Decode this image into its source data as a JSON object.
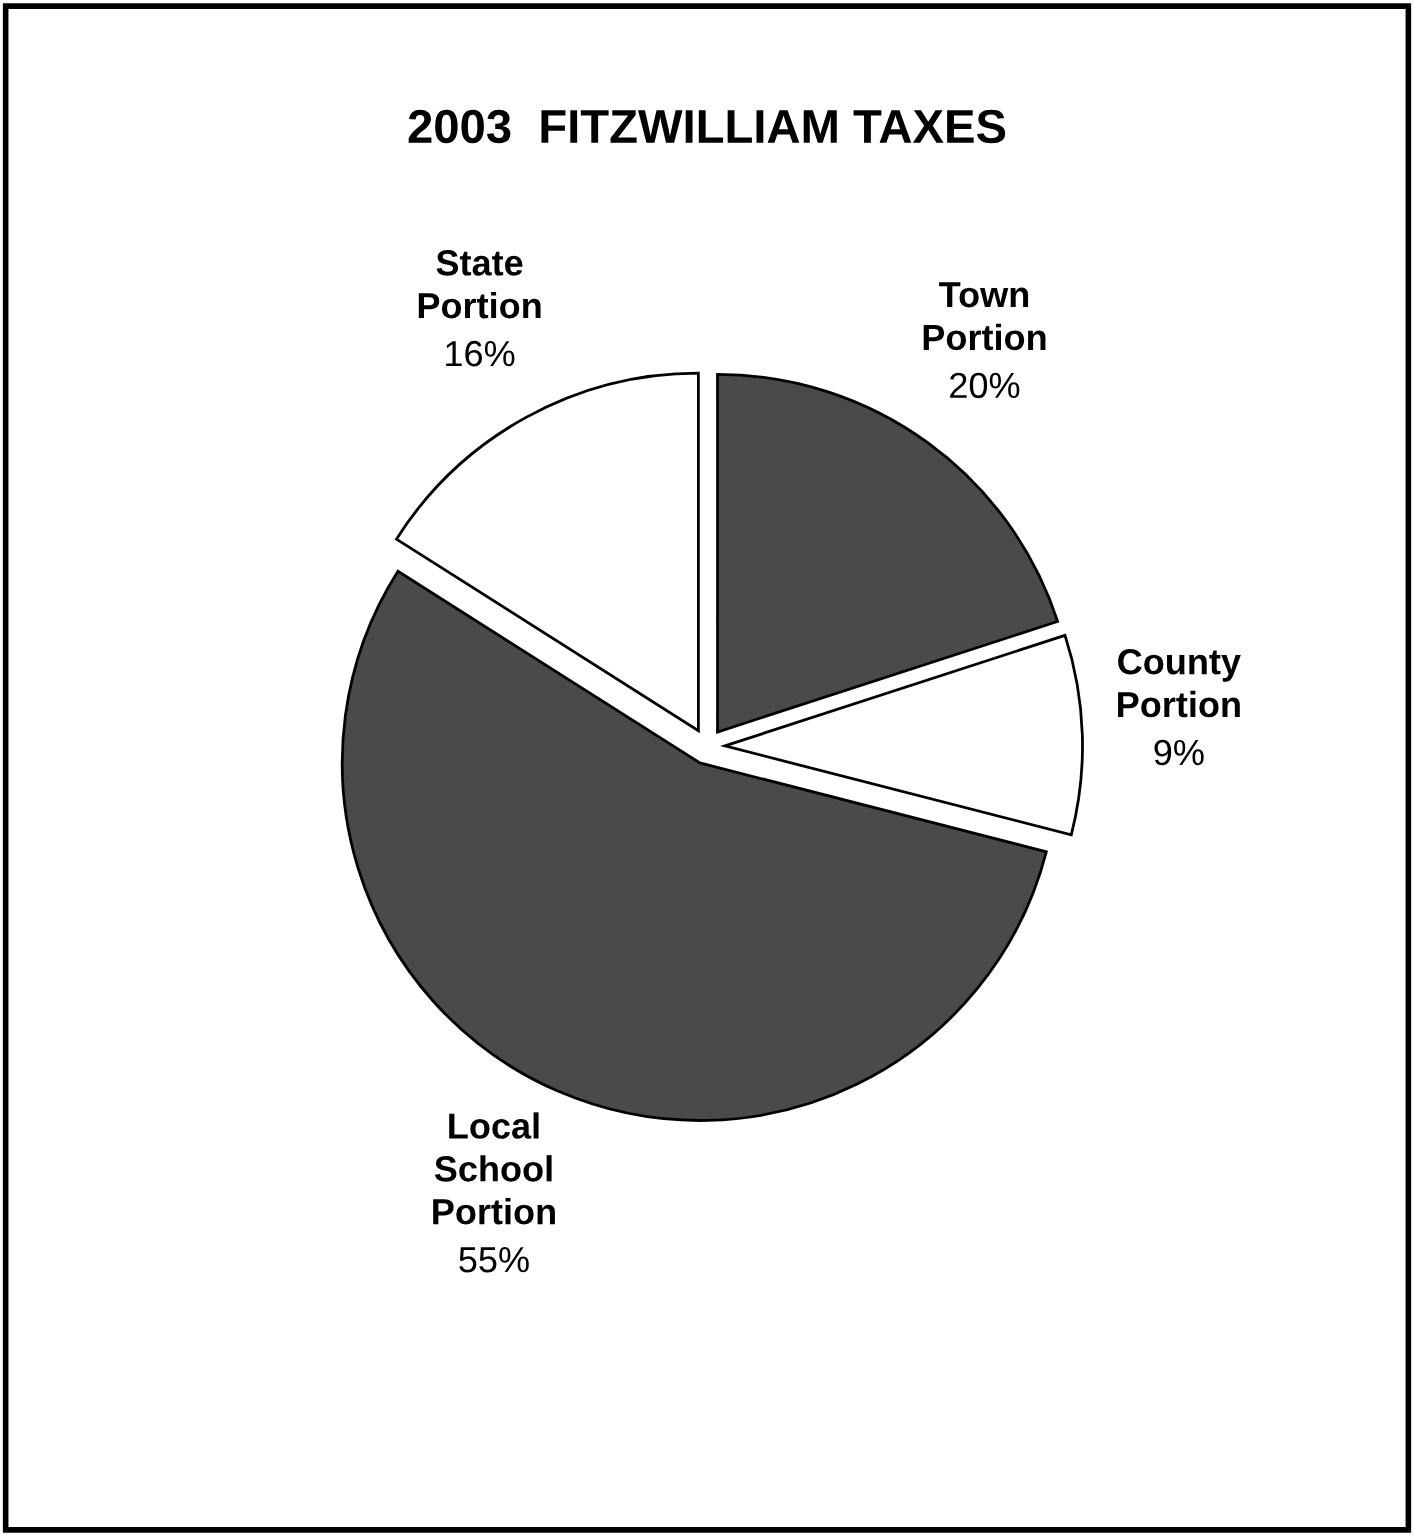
{
  "chart_data": {
    "type": "pie",
    "title": "2003  FITZWILLIAM TAXES",
    "categories": [
      "Town Portion",
      "County Portion",
      "Local School Portion",
      "State Portion"
    ],
    "values": [
      20,
      9,
      55,
      16
    ],
    "value_labels": [
      "20%",
      "9%",
      "55%",
      "16%"
    ],
    "colors": [
      "#4a4a4a",
      "#ffffff",
      "#4a4a4a",
      "#ffffff"
    ]
  }
}
